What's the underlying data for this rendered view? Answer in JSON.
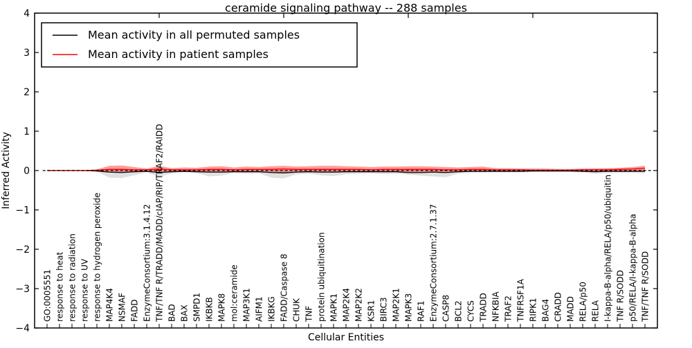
{
  "chart_data": {
    "type": "line",
    "title": "ceramide signaling pathway -- 288 samples",
    "xlabel": "Cellular Entities",
    "ylabel": "Inferred Activity",
    "ylim": [
      -4,
      4
    ],
    "yticks": [
      -4,
      -3,
      -2,
      -1,
      0,
      1,
      2,
      3,
      4
    ],
    "top_ticks": [
      10,
      20,
      30,
      40
    ],
    "grid": false,
    "legend_position": "upper left",
    "zero_line": {
      "y": 0,
      "style": "dashed",
      "color": "#000000"
    },
    "categories": [
      "GO:0005551",
      "response to heat",
      "response to radiation",
      "response to UV",
      "response to hydrogen peroxide",
      "MAP4K4",
      "NSMAF",
      "FADD",
      "EnzymeConsortium:3.1.4.12",
      "TNF/TNF R/TRADD/MADD/cIAP/RIP/TRAF2/RAIDD",
      "BAD",
      "BAX",
      "SMPD1",
      "IKBKB",
      "MAPK8",
      "mol:ceramide",
      "MAP3K1",
      "AIFM1",
      "IKBKG",
      "FADD/Caspase 8",
      "CHUK",
      "TNF",
      "protein ubiquitination",
      "MAPK1",
      "MAP2K4",
      "MAP2K2",
      "KSR1",
      "BIRC3",
      "MAP2K1",
      "MAPK3",
      "RAF1",
      "EnzymeConsortium:2.7.1.37",
      "CASP8",
      "BCL2",
      "CYCS",
      "TRADD",
      "NFKBIA",
      "TRAF2",
      "TNFRSF1A",
      "RIPK1",
      "BAG4",
      "CRADD",
      "MADD",
      "RELA/p50",
      "RELA",
      "I-kappa-B-alpha/RELA/p50/ubiquitin",
      "TNF R/SODD",
      "p50/RELA/I-kappa-B-alpha",
      "TNF/TNF R/SODD"
    ],
    "series": [
      {
        "id": "permuted",
        "name": "Mean activity in all permuted samples",
        "color": "#000000",
        "values": [
          0,
          0,
          0,
          0,
          -0.01,
          -0.04,
          -0.05,
          -0.03,
          -0.02,
          -0.05,
          -0.03,
          -0.02,
          -0.03,
          -0.04,
          -0.04,
          -0.03,
          -0.03,
          -0.03,
          -0.05,
          -0.06,
          -0.04,
          -0.03,
          -0.04,
          -0.04,
          -0.03,
          -0.03,
          -0.03,
          -0.03,
          -0.03,
          -0.05,
          -0.05,
          -0.04,
          -0.05,
          -0.03,
          -0.02,
          -0.02,
          -0.02,
          -0.02,
          -0.02,
          -0.01,
          -0.01,
          -0.01,
          -0.01,
          -0.02,
          -0.03,
          -0.02,
          -0.02,
          -0.02,
          -0.02
        ]
      },
      {
        "id": "patient",
        "name": "Mean activity in patient samples",
        "color": "#ff0000",
        "values": [
          0,
          0,
          0,
          0,
          0.01,
          0.03,
          0.03,
          0.02,
          0.02,
          0.04,
          0.02,
          0.02,
          0.02,
          0.03,
          0.03,
          0.02,
          0.03,
          0.03,
          0.03,
          0.04,
          0.03,
          0.03,
          0.03,
          0.03,
          0.03,
          0.03,
          0.02,
          0.03,
          0.03,
          0.03,
          0.03,
          0.03,
          0.02,
          0.02,
          0.03,
          0.03,
          0.02,
          0.02,
          0.02,
          0.01,
          0.01,
          0.01,
          0.01,
          0.02,
          0.02,
          0.02,
          0.03,
          0.04,
          0.06
        ]
      }
    ],
    "bands": [
      {
        "id": "permuted-range",
        "color": "#e0e0e0",
        "opacity": 1,
        "lo": [
          -0.01,
          -0.01,
          -0.01,
          -0.01,
          -0.03,
          -0.18,
          -0.19,
          -0.12,
          -0.05,
          -0.16,
          -0.07,
          -0.05,
          -0.06,
          -0.15,
          -0.13,
          -0.06,
          -0.08,
          -0.07,
          -0.18,
          -0.2,
          -0.1,
          -0.08,
          -0.12,
          -0.14,
          -0.09,
          -0.08,
          -0.07,
          -0.09,
          -0.08,
          -0.1,
          -0.13,
          -0.15,
          -0.17,
          -0.08,
          -0.06,
          -0.06,
          -0.05,
          -0.05,
          -0.05,
          -0.04,
          -0.04,
          -0.04,
          -0.04,
          -0.05,
          -0.08,
          -0.07,
          -0.06,
          -0.06,
          -0.07
        ],
        "hi": [
          0.01,
          0.01,
          0.01,
          0.01,
          0.02,
          0.05,
          0.05,
          0.04,
          0.03,
          0.06,
          0.04,
          0.03,
          0.04,
          0.05,
          0.05,
          0.04,
          0.04,
          0.04,
          0.05,
          0.06,
          0.05,
          0.05,
          0.05,
          0.05,
          0.05,
          0.04,
          0.04,
          0.04,
          0.04,
          0.05,
          0.05,
          0.05,
          0.05,
          0.04,
          0.04,
          0.04,
          0.03,
          0.03,
          0.03,
          0.03,
          0.03,
          0.03,
          0.03,
          0.04,
          0.05,
          0.05,
          0.05,
          0.06,
          0.08
        ]
      },
      {
        "id": "patient-range",
        "color": "#ff2828",
        "opacity": 0.45,
        "lo": [
          -0.01,
          -0.01,
          -0.01,
          -0.01,
          -0.02,
          -0.05,
          -0.05,
          -0.04,
          -0.03,
          -0.05,
          -0.04,
          -0.03,
          -0.04,
          -0.05,
          -0.05,
          -0.04,
          -0.04,
          -0.04,
          -0.05,
          -0.06,
          -0.05,
          -0.04,
          -0.05,
          -0.05,
          -0.04,
          -0.04,
          -0.04,
          -0.04,
          -0.04,
          -0.05,
          -0.05,
          -0.05,
          -0.05,
          -0.04,
          -0.03,
          -0.03,
          -0.03,
          -0.03,
          -0.03,
          -0.02,
          -0.02,
          -0.02,
          -0.02,
          -0.03,
          -0.03,
          -0.03,
          -0.03,
          -0.03,
          -0.02
        ],
        "hi": [
          0.01,
          0.01,
          0.01,
          0.01,
          0.03,
          0.12,
          0.13,
          0.09,
          0.05,
          0.12,
          0.06,
          0.08,
          0.07,
          0.1,
          0.11,
          0.08,
          0.1,
          0.09,
          0.11,
          0.12,
          0.1,
          0.11,
          0.12,
          0.12,
          0.11,
          0.1,
          0.09,
          0.1,
          0.1,
          0.11,
          0.11,
          0.1,
          0.09,
          0.08,
          0.09,
          0.1,
          0.06,
          0.06,
          0.05,
          0.05,
          0.05,
          0.04,
          0.04,
          0.05,
          0.05,
          0.06,
          0.07,
          0.09,
          0.12
        ]
      }
    ]
  }
}
